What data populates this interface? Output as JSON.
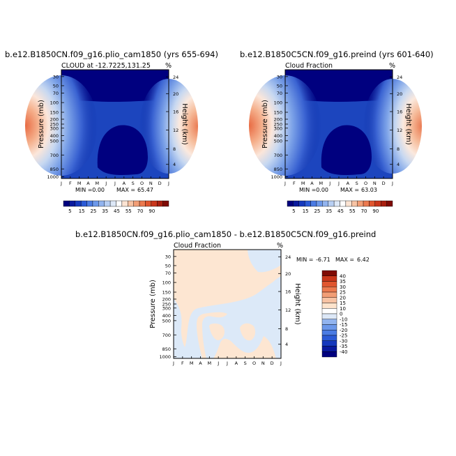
{
  "chart_data": [
    {
      "type": "heatmap",
      "title": "b.e12.B1850CN.f09_g16.plio_cam1850 (yrs 655-694)",
      "subtitle_left": "CLOUD at -12.7225,131.25",
      "subtitle_right": "%",
      "ylabel_left": "Pressure (mb)",
      "ylabel_right": "Height (km)",
      "months": [
        "J",
        "F",
        "M",
        "A",
        "M",
        "J",
        "J",
        "A",
        "S",
        "O",
        "N",
        "D",
        "J"
      ],
      "pressure_ticks": [
        "30",
        "50",
        "70",
        "100",
        "150",
        "200",
        "250",
        "300",
        "400",
        "500",
        "700",
        "850",
        "1000"
      ],
      "height_ticks": [
        "24",
        "20",
        "16",
        "12",
        "8",
        "4"
      ],
      "min_label": "MIN =",
      "min_value": "0.00",
      "max_label": "MAX =",
      "max_value": "65.47",
      "colorbar_ticks": [
        "5",
        "15",
        "25",
        "35",
        "45",
        "55",
        "70",
        "90"
      ]
    },
    {
      "type": "heatmap",
      "title": "b.e12.B1850C5CN.f09_g16.preind (yrs 601-640)",
      "subtitle_left": "Cloud Fraction",
      "subtitle_right": "%",
      "ylabel_left": "Pressure (mb)",
      "ylabel_right": "Height (km)",
      "months": [
        "J",
        "F",
        "M",
        "A",
        "M",
        "J",
        "J",
        "A",
        "S",
        "O",
        "N",
        "D",
        "J"
      ],
      "pressure_ticks": [
        "30",
        "50",
        "70",
        "100",
        "150",
        "200",
        "250",
        "300",
        "400",
        "500",
        "700",
        "850",
        "1000"
      ],
      "height_ticks": [
        "24",
        "20",
        "16",
        "12",
        "8",
        "4"
      ],
      "min_label": "MIN =",
      "min_value": "0.00",
      "max_label": "MAX =",
      "max_value": "63.03",
      "colorbar_ticks": [
        "5",
        "15",
        "25",
        "35",
        "45",
        "55",
        "70",
        "90"
      ]
    },
    {
      "type": "heatmap",
      "title": "b.e12.B1850CN.f09_g16.plio_cam1850 - b.e12.B1850C5CN.f09_g16.preind",
      "subtitle_left": "Cloud Fraction",
      "subtitle_right": "%",
      "ylabel_left": "Pressure (mb)",
      "ylabel_right": "Height (km)",
      "months": [
        "J",
        "F",
        "M",
        "A",
        "M",
        "J",
        "J",
        "A",
        "S",
        "O",
        "N",
        "D",
        "J"
      ],
      "pressure_ticks": [
        "30",
        "50",
        "70",
        "100",
        "150",
        "200",
        "250",
        "300",
        "400",
        "500",
        "700",
        "850",
        "1000"
      ],
      "height_ticks": [
        "24",
        "20",
        "16",
        "12",
        "8",
        "4"
      ],
      "min_label": "MIN =",
      "min_value": "-6.71",
      "max_label": "MAX =",
      "max_value": "6.42",
      "colorbar_ticks": [
        "40",
        "35",
        "30",
        "25",
        "20",
        "15",
        "10",
        "0",
        "-10",
        "-15",
        "-20",
        "-25",
        "-30",
        "-35",
        "-40"
      ]
    }
  ],
  "colors": {
    "cloud_scale": [
      "#00007f",
      "#0a1a9e",
      "#1639bd",
      "#2b5ad6",
      "#4a7be3",
      "#6c98ea",
      "#92b4ef",
      "#b8cff3",
      "#dde8f7",
      "#ffffff",
      "#fbe3d2",
      "#f7c3a4",
      "#f29e76",
      "#ec7a4f",
      "#e0562f",
      "#c9361b",
      "#a81f0f",
      "#7f0b05"
    ],
    "diff_scale": [
      "#00007f",
      "#0a1a9e",
      "#1639bd",
      "#2b5ad6",
      "#4a7be3",
      "#6c98ea",
      "#92b4ef",
      "#dde8f7",
      "#ffffff",
      "#fde3cc",
      "#f7c3a4",
      "#f29e76",
      "#ec7a4f",
      "#e0562f",
      "#c9361b",
      "#7f0b05"
    ],
    "diff_background": "#fde6d2",
    "diff_negative": "#dce9f8"
  }
}
